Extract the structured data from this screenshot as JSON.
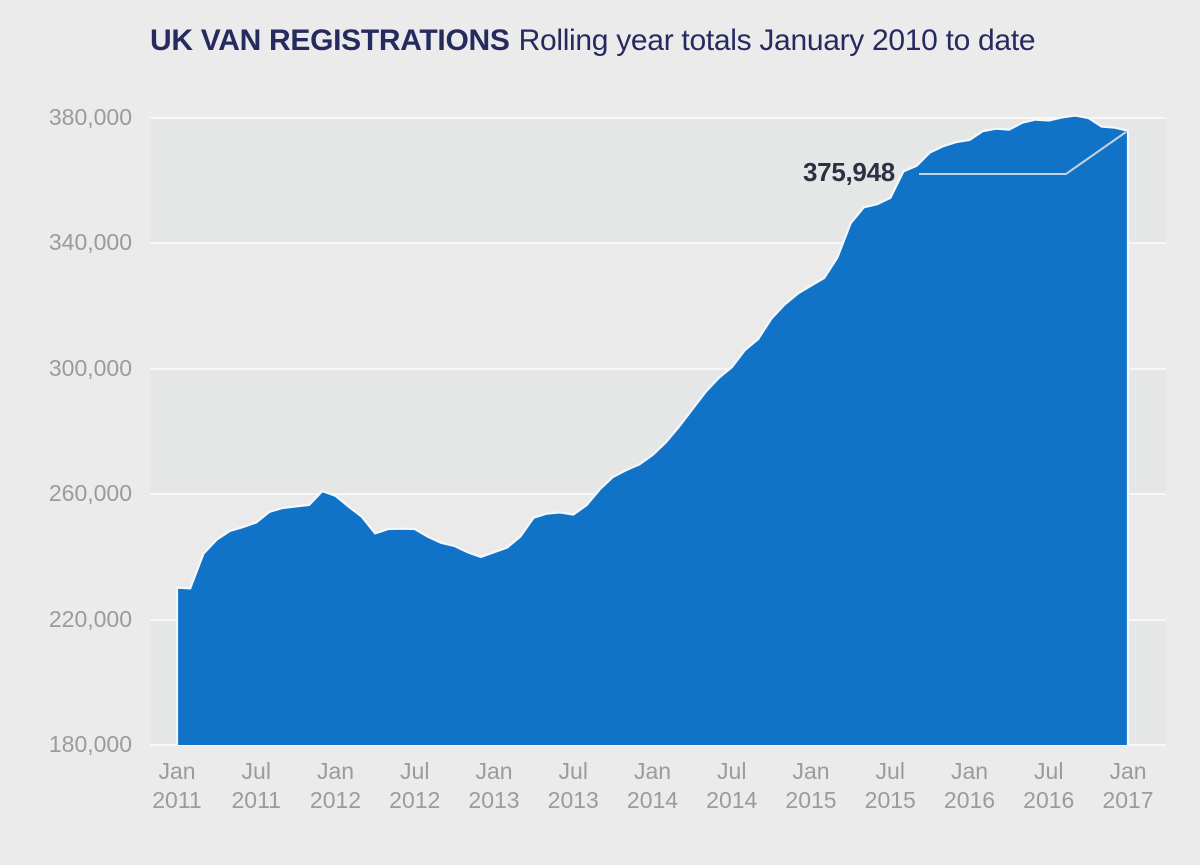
{
  "title": {
    "main": "UK VAN REGISTRATIONS",
    "subtitle": "Rolling year totals January 2010 to date"
  },
  "annotation": {
    "label": "375,948"
  },
  "colors": {
    "area": "#1173c8",
    "area_outline": "#f3f8fc",
    "background": "#ebebeb",
    "band_dark": "#e5e6e6",
    "band_light": "#eaeaea",
    "gridline": "#f7f7f7",
    "title": "#262b5f",
    "annotation": "#2c3045",
    "axis_label": "#9b9b9b",
    "callout": "#d7dde2"
  },
  "chart_data": {
    "type": "area",
    "title": "UK VAN REGISTRATIONS",
    "subtitle": "Rolling year totals January 2010 to date",
    "x_unit": "month",
    "x_start_label": "Jan 2011",
    "x_end_label": "Jan 2017",
    "interval": "monthly",
    "grid": "horizontal-bands",
    "legend": "none",
    "ylim": [
      180000,
      380000
    ],
    "y_ticks": [
      {
        "value": 380000,
        "label": "380,000"
      },
      {
        "value": 340000,
        "label": "340,000"
      },
      {
        "value": 300000,
        "label": "300,000"
      },
      {
        "value": 260000,
        "label": "260,000"
      },
      {
        "value": 220000,
        "label": "220,000"
      },
      {
        "value": 180000,
        "label": "180,000"
      }
    ],
    "x_tick_labels": [
      "Jan 2011",
      "Jul 2011",
      "Jan 2012",
      "Jul 2012",
      "Jan 2013",
      "Jul 2013",
      "Jan 2014",
      "Jul 2014",
      "Jan 2015",
      "Jul 2015",
      "Jan 2016",
      "Jul 2016",
      "Jan 2017"
    ],
    "values": [
      230200,
      230000,
      241000,
      245500,
      248300,
      249500,
      251000,
      254400,
      255600,
      256100,
      256600,
      261000,
      259500,
      256000,
      252800,
      247500,
      248900,
      249000,
      248900,
      246400,
      244500,
      243500,
      241500,
      240000,
      241500,
      243000,
      246500,
      252500,
      253800,
      254200,
      253500,
      256500,
      261500,
      265500,
      267700,
      269500,
      272500,
      276500,
      281500,
      287000,
      292500,
      297000,
      300500,
      306000,
      309500,
      316000,
      320500,
      324000,
      326500,
      329000,
      335500,
      346400,
      351500,
      352500,
      354500,
      363000,
      364800,
      369000,
      371000,
      372300,
      373000,
      375800,
      376600,
      376300,
      378500,
      379500,
      379200,
      380200,
      380800,
      380000,
      377300,
      376900,
      375948
    ],
    "annotation": {
      "text": "375,948",
      "points_to": "Jan 2017",
      "value": 375948
    }
  }
}
